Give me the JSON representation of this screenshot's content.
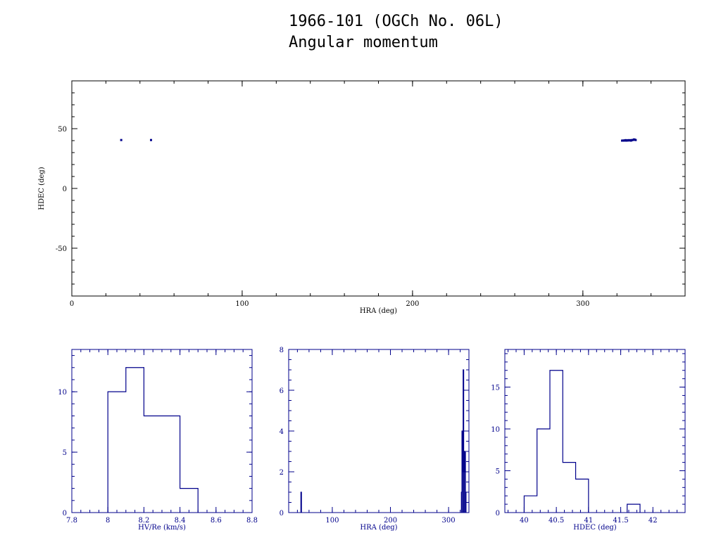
{
  "page": {
    "title_line1": "1966-101 (OGCh No. 06L)",
    "title_line2": "Angular momentum"
  },
  "colors": {
    "frame": "#000000",
    "data_blue": "#00008b",
    "axis_blue": "#00008b"
  },
  "chart_data": [
    {
      "type": "scatter",
      "xlabel": "HRA (deg)",
      "ylabel": "HDEC (deg)",
      "xlim": [
        0,
        360
      ],
      "ylim": [
        -90,
        90
      ],
      "x_ticks": [
        0,
        100,
        200,
        300
      ],
      "y_ticks": [
        -50,
        0,
        50
      ],
      "grid": false,
      "points": [
        [
          29.0,
          40.5
        ],
        [
          46.5,
          40.5
        ],
        [
          323.0,
          40.0
        ],
        [
          323.5,
          40.1
        ],
        [
          324.0,
          40.0
        ],
        [
          324.5,
          40.2
        ],
        [
          325.0,
          40.1
        ],
        [
          325.5,
          40.0
        ],
        [
          326.0,
          40.2
        ],
        [
          326.5,
          40.1
        ],
        [
          327.0,
          40.3
        ],
        [
          327.5,
          40.2
        ],
        [
          328.0,
          40.4
        ],
        [
          328.5,
          40.3
        ],
        [
          329.0,
          40.5
        ],
        [
          329.5,
          40.6
        ],
        [
          330.0,
          41.0
        ],
        [
          330.5,
          40.8
        ],
        [
          331.0,
          40.5
        ],
        [
          325.2,
          40.4
        ],
        [
          326.8,
          40.4
        ],
        [
          328.2,
          40.0
        ]
      ]
    },
    {
      "type": "histogram",
      "xlabel": "HV/Re (km/s)",
      "xlim": [
        7.8,
        8.8
      ],
      "ylim": [
        0,
        13.5
      ],
      "x_ticks": [
        7.8,
        8,
        8.2,
        8.4,
        8.6,
        8.8
      ],
      "x_tick_labels": [
        "7.8",
        "8",
        "8.2",
        "8.4",
        "8.6",
        "8.8"
      ],
      "y_ticks": [
        0,
        5,
        10
      ],
      "bins": [
        {
          "x0": 8.0,
          "x1": 8.1,
          "count": 10
        },
        {
          "x0": 8.1,
          "x1": 8.2,
          "count": 12
        },
        {
          "x0": 8.2,
          "x1": 8.3,
          "count": 8
        },
        {
          "x0": 8.3,
          "x1": 8.4,
          "count": 8
        },
        {
          "x0": 8.4,
          "x1": 8.5,
          "count": 2
        }
      ]
    },
    {
      "type": "histogram",
      "xlabel": "HRA (deg)",
      "xlim": [
        25,
        335
      ],
      "ylim": [
        0,
        8
      ],
      "x_ticks": [
        100,
        200,
        300
      ],
      "x_tick_labels": [
        "100",
        "200",
        "300"
      ],
      "y_ticks": [
        0,
        2,
        4,
        6,
        8
      ],
      "bins": [
        {
          "x0": 46,
          "x1": 47,
          "count": 1
        },
        {
          "x0": 322,
          "x1": 323,
          "count": 1
        },
        {
          "x0": 323,
          "x1": 324,
          "count": 4
        },
        {
          "x0": 324,
          "x1": 325,
          "count": 2
        },
        {
          "x0": 325,
          "x1": 326,
          "count": 7
        },
        {
          "x0": 326,
          "x1": 327,
          "count": 3
        },
        {
          "x0": 327,
          "x1": 328,
          "count": 2
        },
        {
          "x0": 328,
          "x1": 329,
          "count": 3
        },
        {
          "x0": 329,
          "x1": 330,
          "count": 1
        }
      ]
    },
    {
      "type": "histogram",
      "xlabel": "HDEC (deg)",
      "xlim": [
        39.7,
        42.5
      ],
      "ylim": [
        0,
        19.5
      ],
      "x_ticks": [
        40,
        40.5,
        41,
        41.5,
        42
      ],
      "x_tick_labels": [
        "40",
        "40.5",
        "41",
        "41.5",
        "42"
      ],
      "y_ticks": [
        0,
        5,
        10,
        15
      ],
      "bins": [
        {
          "x0": 40.0,
          "x1": 40.1,
          "count": 2
        },
        {
          "x0": 40.1,
          "x1": 40.2,
          "count": 2
        },
        {
          "x0": 40.2,
          "x1": 40.3,
          "count": 10
        },
        {
          "x0": 40.3,
          "x1": 40.4,
          "count": 10
        },
        {
          "x0": 40.4,
          "x1": 40.5,
          "count": 17
        },
        {
          "x0": 40.5,
          "x1": 40.6,
          "count": 17
        },
        {
          "x0": 40.6,
          "x1": 40.7,
          "count": 6
        },
        {
          "x0": 40.7,
          "x1": 40.8,
          "count": 6
        },
        {
          "x0": 40.8,
          "x1": 40.9,
          "count": 4
        },
        {
          "x0": 40.9,
          "x1": 41.0,
          "count": 4
        },
        {
          "x0": 41.6,
          "x1": 41.8,
          "count": 1
        }
      ]
    }
  ]
}
